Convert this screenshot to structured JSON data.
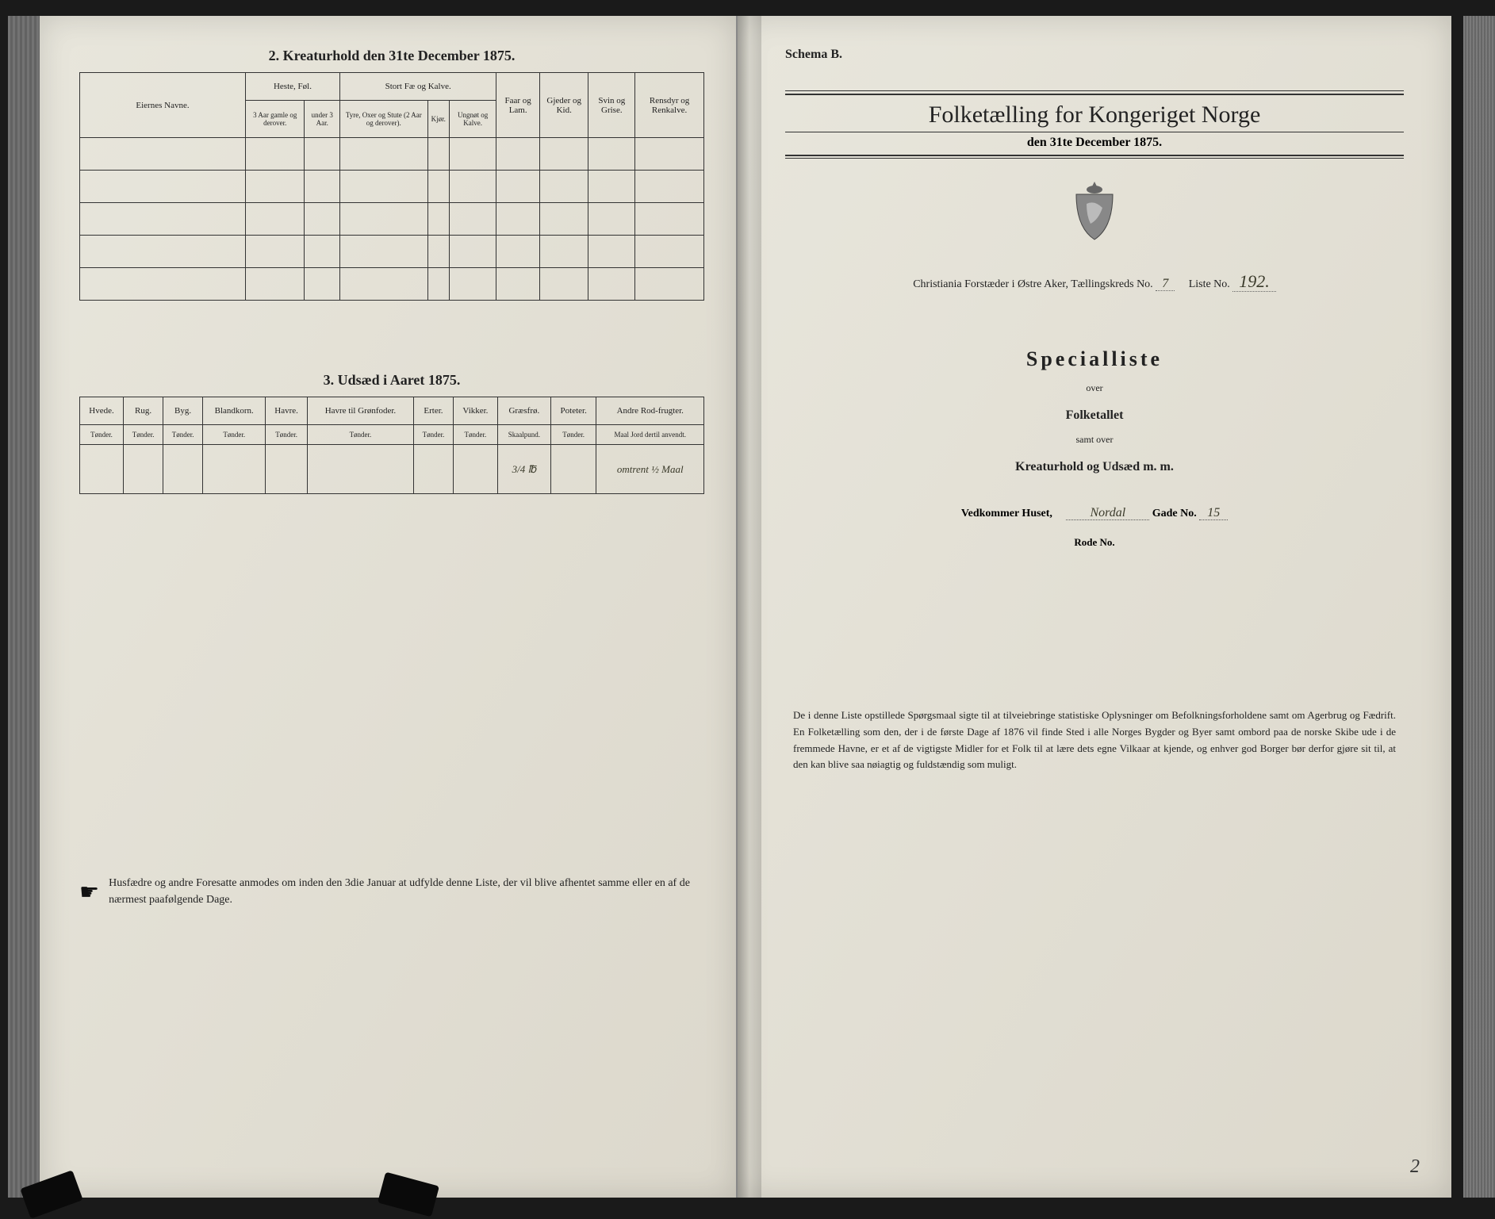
{
  "left": {
    "section2_title": "2. Kreaturhold den 31te December 1875.",
    "table1": {
      "col_owners": "Eiernes Navne.",
      "grp_horses": "Heste, Føl.",
      "grp_cattle": "Stort Fæ og Kalve.",
      "col_sheep": "Faar og Lam.",
      "col_goats": "Gjeder og Kid.",
      "col_pigs": "Svin og Grise.",
      "col_reindeer": "Rensdyr og Renkalve.",
      "sub_h1": "3 Aar gamle og derover.",
      "sub_h2": "under 3 Aar.",
      "sub_c1": "Tyre, Oxer og Stute (2 Aar og derover).",
      "sub_c2": "Kjør.",
      "sub_c3": "Ungnøt og Kalve."
    },
    "section3_title": "3. Udsæd i Aaret 1875.",
    "table2": {
      "cols": [
        "Hvede.",
        "Rug.",
        "Byg.",
        "Blandkorn.",
        "Havre.",
        "Havre til Grønfoder.",
        "Erter.",
        "Vikker.",
        "Græsfrø.",
        "Poteter.",
        "Andre Rod-frugter."
      ],
      "subs": [
        "Tønder.",
        "Tønder.",
        "Tønder.",
        "Tønder.",
        "Tønder.",
        "Tønder.",
        "Tønder.",
        "Tønder.",
        "Skaalpund.",
        "Tønder.",
        "Maal Jord dertil anvendt."
      ],
      "row": [
        "",
        "",
        "",
        "",
        "",
        "",
        "",
        "",
        "3/4 ℔",
        "",
        "omtrent ½ Maal"
      ]
    },
    "footer": "Husfædre og andre Foresatte anmodes om inden den 3die Januar at udfylde denne Liste, der vil blive afhentet samme eller en af de nærmest paafølgende Dage."
  },
  "right": {
    "schema": "Schema B.",
    "title": "Folketælling for Kongeriget Norge",
    "subtitle": "den 31te December 1875.",
    "district_line_prefix": "Christiania Forstæder i Østre Aker,   Tællingskreds No.",
    "kreds_no": "7",
    "liste_label": "Liste No.",
    "liste_no": "192.",
    "special": "Specialliste",
    "over": "over",
    "folketallet": "Folketallet",
    "samtover": "samt over",
    "kreatur": "Kreaturhold og Udsæd m. m.",
    "vedkommer": "Vedkommer Huset,",
    "house_name": "Nordal",
    "gade_label": "Gade No.",
    "gade_no": "15",
    "rode": "Rode No.",
    "footer": "De i denne Liste opstillede Spørgsmaal sigte til at tilveiebringe statistiske Oplysninger om Befolkningsforholdene samt om Agerbrug og Fædrift. En Folketælling som den, der i de første Dage af 1876 vil finde Sted i alle Norges Bygder og Byer samt ombord paa de norske Skibe ude i de fremmede Havne, er et af de vigtigste Midler for et Folk til at lære dets egne Vilkaar at kjende, og enhver god Borger bør derfor gjøre sit til, at den kan blive saa nøiagtig og fuldstændig som muligt.",
    "page_number": "2"
  }
}
